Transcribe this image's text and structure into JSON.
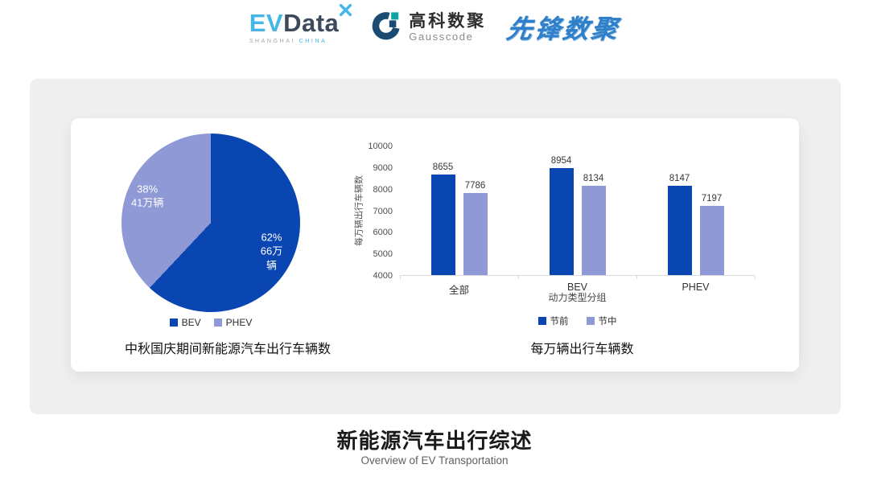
{
  "header": {
    "evdata": {
      "ev": "EV",
      "data": "Data",
      "sub_left": "SHANGHAI",
      "sub_right": "CHINA"
    },
    "gausscode": {
      "cn": "高科数聚",
      "en": "Gausscode"
    },
    "pioneer": {
      "text": "先锋数聚"
    }
  },
  "icons": {
    "evdata_spark": "x-spark",
    "gausscode_mark": "g-ring"
  },
  "colors": {
    "series_dark_blue": "#0a46b1",
    "series_light_blue": "#8e99d5",
    "panel_bg": "#efefef",
    "evdata_cyan": "#45b6e8",
    "evdata_dark": "#3d4a5b",
    "gauss_navy": "#1b4a73",
    "gauss_teal": "#0fa3a3",
    "pioneer_blue": "#2e7ec9"
  },
  "chart_data": [
    {
      "type": "pie",
      "title": "中秋国庆期间新能源汽车出行车辆数",
      "legend_position": "bottom",
      "start_angle_deg": 0,
      "direction": "clockwise",
      "slices": [
        {
          "name": "BEV",
          "percent": 62,
          "value_label": "66万辆",
          "label": "62%\n66万辆",
          "color": "#0a46b1"
        },
        {
          "name": "PHEV",
          "percent": 38,
          "value_label": "41万辆",
          "label": "38%\n41万辆",
          "color": "#8e99d5"
        }
      ]
    },
    {
      "type": "bar",
      "title": "每万辆出行车辆数",
      "categories": [
        "全部",
        "BEV",
        "PHEV"
      ],
      "series": [
        {
          "name": "节前",
          "color": "#0a46b1",
          "values": [
            8655,
            8954,
            8147
          ]
        },
        {
          "name": "节中",
          "color": "#8e99d5",
          "values": [
            7786,
            8134,
            7197
          ]
        }
      ],
      "ylabel": "每万辆出行车辆数",
      "xlabel": "动力类型分组",
      "ylim": [
        4000,
        10000
      ],
      "ytick_step": 1000,
      "grid": false,
      "legend_position": "bottom",
      "data_labels": true
    }
  ],
  "footer": {
    "title": "新能源汽车出行综述",
    "subtitle": "Overview of EV Transportation"
  }
}
